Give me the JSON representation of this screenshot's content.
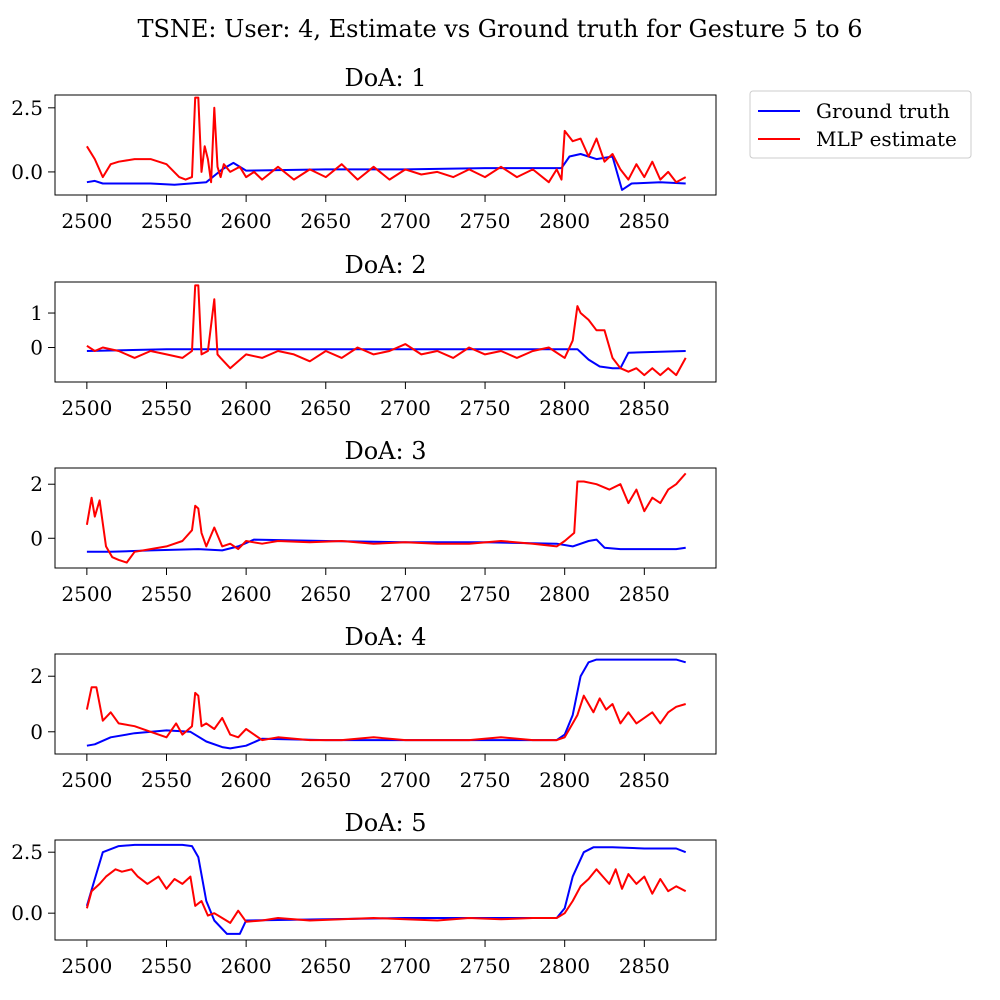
{
  "figure": {
    "title": "TSNE: User: 4, Estimate vs Ground truth for Gesture 5 to 6"
  },
  "legend": {
    "placement": "upper-right-outside",
    "entries": [
      {
        "label": "Ground truth",
        "color": "#0000ff"
      },
      {
        "label": "MLP estimate",
        "color": "#ff0000"
      }
    ]
  },
  "chart_data": [
    {
      "type": "line",
      "title": "DoA: 1",
      "xlim": [
        2480,
        2895
      ],
      "ylim": [
        -0.9,
        3.0
      ],
      "xticks": [
        2500,
        2550,
        2600,
        2650,
        2700,
        2750,
        2800,
        2850
      ],
      "xtick_labels": [
        "2500",
        "2550",
        "2600",
        "2650",
        "2700",
        "2750",
        "2800",
        "2850"
      ],
      "yticks": [
        0,
        2.5
      ],
      "ytick_labels": [
        "0.0",
        "2.5"
      ],
      "series": [
        {
          "name": "Ground truth",
          "color": "#0000ff",
          "x": [
            2500,
            2505,
            2510,
            2520,
            2540,
            2555,
            2565,
            2575,
            2585,
            2592,
            2600,
            2650,
            2700,
            2750,
            2798,
            2803,
            2810,
            2820,
            2830,
            2836,
            2842,
            2860,
            2876
          ],
          "y": [
            -0.4,
            -0.35,
            -0.45,
            -0.45,
            -0.45,
            -0.5,
            -0.45,
            -0.4,
            0.1,
            0.35,
            0.05,
            0.1,
            0.1,
            0.15,
            0.15,
            0.6,
            0.7,
            0.5,
            0.6,
            -0.7,
            -0.45,
            -0.4,
            -0.45
          ]
        },
        {
          "name": "MLP estimate",
          "color": "#ff0000",
          "x": [
            2500,
            2505,
            2510,
            2515,
            2520,
            2530,
            2540,
            2550,
            2558,
            2562,
            2566,
            2568,
            2570,
            2572,
            2574,
            2576,
            2578,
            2580,
            2582,
            2584,
            2586,
            2590,
            2596,
            2600,
            2605,
            2610,
            2620,
            2630,
            2640,
            2650,
            2660,
            2670,
            2680,
            2690,
            2700,
            2710,
            2720,
            2730,
            2740,
            2750,
            2760,
            2770,
            2780,
            2790,
            2795,
            2798,
            2800,
            2805,
            2810,
            2815,
            2820,
            2825,
            2830,
            2835,
            2840,
            2845,
            2850,
            2855,
            2860,
            2865,
            2870,
            2876
          ],
          "y": [
            1.0,
            0.5,
            -0.2,
            0.3,
            0.4,
            0.5,
            0.5,
            0.3,
            -0.2,
            -0.3,
            -0.2,
            2.9,
            2.9,
            0.0,
            1.0,
            0.5,
            -0.4,
            2.5,
            0.2,
            -0.2,
            0.3,
            0.0,
            0.2,
            -0.2,
            0.0,
            -0.3,
            0.2,
            -0.3,
            0.1,
            -0.2,
            0.3,
            -0.3,
            0.2,
            -0.3,
            0.1,
            -0.1,
            0.0,
            -0.2,
            0.1,
            -0.2,
            0.2,
            -0.2,
            0.1,
            -0.4,
            0.1,
            -0.3,
            1.6,
            1.2,
            1.3,
            0.6,
            1.3,
            0.4,
            0.7,
            0.1,
            -0.3,
            0.3,
            -0.2,
            0.4,
            -0.3,
            0.0,
            -0.4,
            -0.2
          ]
        }
      ]
    },
    {
      "type": "line",
      "title": "DoA: 2",
      "xlim": [
        2480,
        2895
      ],
      "ylim": [
        -1.0,
        1.9
      ],
      "xticks": [
        2500,
        2550,
        2600,
        2650,
        2700,
        2750,
        2800,
        2850
      ],
      "xtick_labels": [
        "2500",
        "2550",
        "2600",
        "2650",
        "2700",
        "2750",
        "2800",
        "2850"
      ],
      "yticks": [
        0,
        1
      ],
      "ytick_labels": [
        "0",
        "1"
      ],
      "series": [
        {
          "name": "Ground truth",
          "color": "#0000ff",
          "x": [
            2500,
            2550,
            2600,
            2650,
            2700,
            2750,
            2800,
            2808,
            2815,
            2822,
            2830,
            2835,
            2840,
            2876
          ],
          "y": [
            -0.1,
            -0.05,
            -0.05,
            -0.05,
            -0.05,
            -0.05,
            -0.05,
            -0.05,
            -0.35,
            -0.55,
            -0.6,
            -0.6,
            -0.15,
            -0.1
          ]
        },
        {
          "name": "MLP estimate",
          "color": "#ff0000",
          "x": [
            2500,
            2505,
            2510,
            2520,
            2530,
            2540,
            2550,
            2560,
            2566,
            2568,
            2570,
            2572,
            2576,
            2580,
            2582,
            2584,
            2590,
            2600,
            2610,
            2620,
            2630,
            2640,
            2650,
            2660,
            2670,
            2680,
            2690,
            2700,
            2710,
            2720,
            2730,
            2740,
            2750,
            2760,
            2770,
            2780,
            2790,
            2800,
            2805,
            2808,
            2810,
            2815,
            2820,
            2825,
            2830,
            2835,
            2840,
            2845,
            2850,
            2855,
            2860,
            2865,
            2870,
            2876
          ],
          "y": [
            0.05,
            -0.1,
            0.0,
            -0.1,
            -0.3,
            -0.1,
            -0.2,
            -0.3,
            -0.1,
            1.8,
            1.8,
            -0.2,
            -0.1,
            1.4,
            -0.2,
            -0.3,
            -0.6,
            -0.2,
            -0.3,
            -0.1,
            -0.2,
            -0.4,
            -0.1,
            -0.3,
            0.0,
            -0.2,
            -0.1,
            0.1,
            -0.2,
            -0.1,
            -0.3,
            0.0,
            -0.2,
            -0.1,
            -0.3,
            -0.1,
            0.0,
            -0.3,
            0.2,
            1.2,
            1.0,
            0.8,
            0.5,
            0.5,
            -0.3,
            -0.6,
            -0.7,
            -0.6,
            -0.8,
            -0.6,
            -0.8,
            -0.6,
            -0.8,
            -0.3
          ]
        }
      ]
    },
    {
      "type": "line",
      "title": "DoA: 3",
      "xlim": [
        2480,
        2895
      ],
      "ylim": [
        -1.1,
        2.6
      ],
      "xticks": [
        2500,
        2550,
        2600,
        2650,
        2700,
        2750,
        2800,
        2850
      ],
      "xtick_labels": [
        "2500",
        "2550",
        "2600",
        "2650",
        "2700",
        "2750",
        "2800",
        "2850"
      ],
      "yticks": [
        0,
        2
      ],
      "ytick_labels": [
        "0",
        "2"
      ],
      "series": [
        {
          "name": "Ground truth",
          "color": "#0000ff",
          "x": [
            2500,
            2515,
            2540,
            2570,
            2585,
            2595,
            2605,
            2650,
            2700,
            2750,
            2795,
            2805,
            2815,
            2820,
            2825,
            2835,
            2850,
            2870,
            2876
          ],
          "y": [
            -0.5,
            -0.5,
            -0.45,
            -0.4,
            -0.45,
            -0.3,
            -0.05,
            -0.1,
            -0.15,
            -0.15,
            -0.2,
            -0.3,
            -0.1,
            -0.05,
            -0.35,
            -0.4,
            -0.4,
            -0.4,
            -0.35
          ]
        },
        {
          "name": "MLP estimate",
          "color": "#ff0000",
          "x": [
            2500,
            2503,
            2505,
            2508,
            2512,
            2516,
            2520,
            2525,
            2530,
            2540,
            2550,
            2560,
            2566,
            2568,
            2570,
            2572,
            2575,
            2580,
            2585,
            2590,
            2595,
            2600,
            2610,
            2620,
            2640,
            2660,
            2680,
            2700,
            2720,
            2740,
            2760,
            2780,
            2795,
            2800,
            2806,
            2808,
            2812,
            2820,
            2828,
            2835,
            2840,
            2845,
            2850,
            2855,
            2860,
            2865,
            2870,
            2876
          ],
          "y": [
            0.5,
            1.5,
            0.8,
            1.4,
            -0.3,
            -0.7,
            -0.8,
            -0.9,
            -0.5,
            -0.4,
            -0.3,
            -0.1,
            0.3,
            1.2,
            1.1,
            0.2,
            -0.3,
            0.4,
            -0.3,
            -0.2,
            -0.4,
            -0.1,
            -0.2,
            -0.1,
            -0.15,
            -0.1,
            -0.2,
            -0.15,
            -0.2,
            -0.2,
            -0.1,
            -0.2,
            -0.3,
            -0.1,
            0.2,
            2.1,
            2.1,
            2.0,
            1.8,
            2.0,
            1.3,
            1.8,
            1.0,
            1.5,
            1.3,
            1.8,
            2.0,
            2.4
          ]
        }
      ]
    },
    {
      "type": "line",
      "title": "DoA: 4",
      "xlim": [
        2480,
        2895
      ],
      "ylim": [
        -0.8,
        2.8
      ],
      "xticks": [
        2500,
        2550,
        2600,
        2650,
        2700,
        2750,
        2800,
        2850
      ],
      "xtick_labels": [
        "2500",
        "2550",
        "2600",
        "2650",
        "2700",
        "2750",
        "2800",
        "2850"
      ],
      "yticks": [
        0,
        2
      ],
      "ytick_labels": [
        "0",
        "2"
      ],
      "series": [
        {
          "name": "Ground truth",
          "color": "#0000ff",
          "x": [
            2500,
            2505,
            2515,
            2530,
            2550,
            2565,
            2575,
            2585,
            2590,
            2600,
            2610,
            2650,
            2700,
            2750,
            2795,
            2800,
            2805,
            2810,
            2815,
            2820,
            2835,
            2850,
            2870,
            2876
          ],
          "y": [
            -0.5,
            -0.45,
            -0.2,
            -0.05,
            0.05,
            0.0,
            -0.35,
            -0.55,
            -0.6,
            -0.5,
            -0.25,
            -0.3,
            -0.3,
            -0.3,
            -0.3,
            -0.1,
            0.6,
            2.0,
            2.5,
            2.6,
            2.6,
            2.6,
            2.6,
            2.5
          ]
        },
        {
          "name": "MLP estimate",
          "color": "#ff0000",
          "x": [
            2500,
            2503,
            2506,
            2510,
            2515,
            2520,
            2530,
            2540,
            2550,
            2556,
            2560,
            2566,
            2568,
            2570,
            2572,
            2575,
            2580,
            2585,
            2590,
            2595,
            2600,
            2610,
            2620,
            2640,
            2660,
            2680,
            2700,
            2720,
            2740,
            2760,
            2780,
            2795,
            2800,
            2805,
            2808,
            2812,
            2818,
            2822,
            2826,
            2830,
            2835,
            2840,
            2845,
            2850,
            2855,
            2860,
            2865,
            2870,
            2876
          ],
          "y": [
            0.8,
            1.6,
            1.6,
            0.4,
            0.7,
            0.3,
            0.2,
            0.0,
            -0.2,
            0.3,
            -0.1,
            0.2,
            1.4,
            1.3,
            0.2,
            0.3,
            0.1,
            0.5,
            -0.1,
            -0.2,
            0.1,
            -0.3,
            -0.2,
            -0.3,
            -0.3,
            -0.2,
            -0.3,
            -0.3,
            -0.3,
            -0.2,
            -0.3,
            -0.3,
            -0.2,
            0.3,
            0.6,
            1.3,
            0.7,
            1.2,
            0.8,
            1.0,
            0.3,
            0.7,
            0.3,
            0.5,
            0.7,
            0.3,
            0.7,
            0.9,
            1.0
          ]
        }
      ]
    },
    {
      "type": "line",
      "title": "DoA: 5",
      "xlim": [
        2480,
        2895
      ],
      "ylim": [
        -1.1,
        3.0
      ],
      "xticks": [
        2500,
        2550,
        2600,
        2650,
        2700,
        2750,
        2800,
        2850
      ],
      "xtick_labels": [
        "2500",
        "2550",
        "2600",
        "2650",
        "2700",
        "2750",
        "2800",
        "2850"
      ],
      "yticks": [
        0,
        2.5
      ],
      "ytick_labels": [
        "0.0",
        "2.5"
      ],
      "series": [
        {
          "name": "Ground truth",
          "color": "#0000ff",
          "x": [
            2500,
            2505,
            2510,
            2520,
            2530,
            2560,
            2566,
            2570,
            2575,
            2580,
            2588,
            2592,
            2596,
            2600,
            2650,
            2700,
            2750,
            2795,
            2800,
            2805,
            2812,
            2818,
            2830,
            2850,
            2870,
            2876
          ],
          "y": [
            0.3,
            1.4,
            2.5,
            2.75,
            2.8,
            2.8,
            2.75,
            2.3,
            0.5,
            -0.3,
            -0.85,
            -0.85,
            -0.85,
            -0.3,
            -0.25,
            -0.2,
            -0.2,
            -0.2,
            0.2,
            1.5,
            2.5,
            2.7,
            2.7,
            2.65,
            2.65,
            2.5
          ]
        },
        {
          "name": "MLP estimate",
          "color": "#ff0000",
          "x": [
            2500,
            2503,
            2508,
            2512,
            2518,
            2522,
            2528,
            2532,
            2538,
            2545,
            2550,
            2555,
            2560,
            2565,
            2568,
            2572,
            2576,
            2580,
            2585,
            2590,
            2595,
            2600,
            2610,
            2620,
            2640,
            2660,
            2680,
            2700,
            2720,
            2740,
            2760,
            2780,
            2795,
            2800,
            2805,
            2810,
            2815,
            2820,
            2824,
            2828,
            2832,
            2836,
            2840,
            2845,
            2850,
            2855,
            2860,
            2865,
            2870,
            2876
          ],
          "y": [
            0.2,
            0.9,
            1.2,
            1.5,
            1.8,
            1.7,
            1.8,
            1.5,
            1.2,
            1.5,
            1.0,
            1.4,
            1.2,
            1.5,
            0.3,
            0.5,
            -0.1,
            0.0,
            -0.2,
            -0.4,
            0.1,
            -0.35,
            -0.3,
            -0.2,
            -0.3,
            -0.25,
            -0.2,
            -0.25,
            -0.3,
            -0.2,
            -0.25,
            -0.2,
            -0.2,
            0.0,
            0.5,
            1.1,
            1.4,
            1.8,
            1.5,
            1.2,
            1.8,
            1.0,
            1.6,
            1.2,
            1.5,
            0.8,
            1.4,
            0.9,
            1.1,
            0.9
          ]
        }
      ]
    }
  ]
}
